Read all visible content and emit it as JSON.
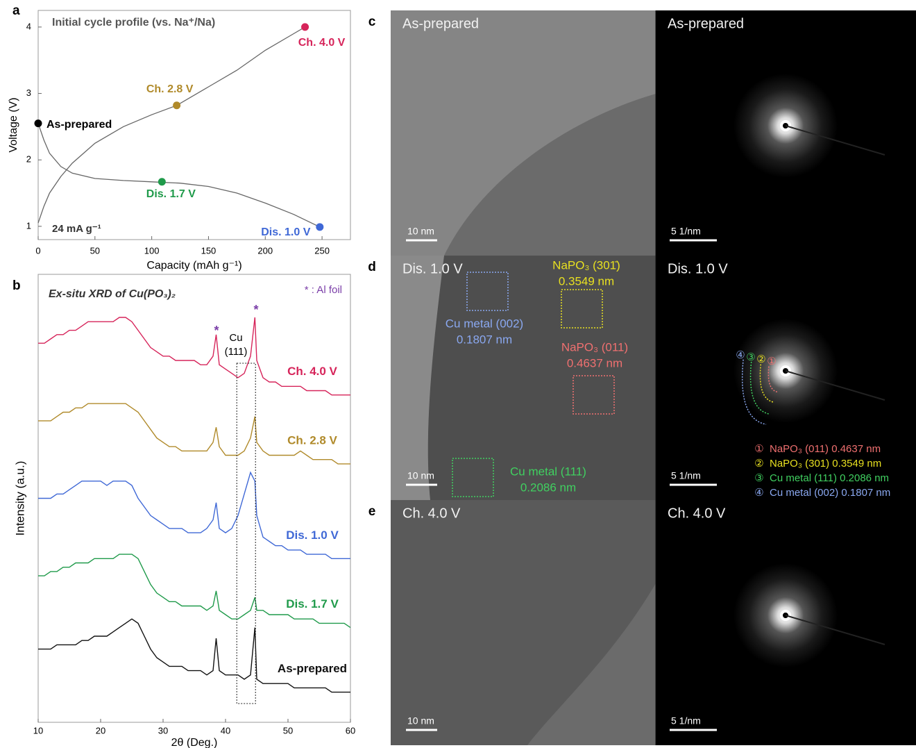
{
  "chart_data": [
    {
      "type": "line",
      "panel": "a",
      "title": "Initial cycle profile (vs. Na⁺/Na)",
      "xlabel": "Capacity (mAh g⁻¹)",
      "ylabel": "Voltage (V)",
      "annotation": "24 mA g⁻¹",
      "xlim": [
        0,
        275
      ],
      "ylim": [
        0.8,
        4.25
      ],
      "xticks": [
        0,
        50,
        100,
        150,
        200,
        250
      ],
      "yticks": [
        1,
        2,
        3,
        4
      ],
      "series": [
        {
          "color": "#666666",
          "x": [
            0,
            5,
            10,
            20,
            30,
            50,
            75,
            100,
            125,
            150,
            175,
            200,
            225,
            248
          ],
          "values": [
            2.55,
            2.3,
            2.1,
            1.9,
            1.8,
            1.72,
            1.69,
            1.67,
            1.65,
            1.6,
            1.5,
            1.35,
            1.18,
            0.99
          ]
        },
        {
          "color": "#666666",
          "x": [
            0,
            5,
            10,
            20,
            30,
            50,
            75,
            100,
            122,
            150,
            175,
            200,
            225,
            235
          ],
          "values": [
            1.05,
            1.3,
            1.5,
            1.75,
            1.95,
            2.25,
            2.5,
            2.68,
            2.82,
            3.1,
            3.35,
            3.65,
            3.9,
            4.0
          ]
        }
      ],
      "markers": [
        {
          "label": "As-prepared",
          "x": 0,
          "y": 2.55,
          "color": "#000000",
          "label_color": "#000000"
        },
        {
          "label": "Ch. 2.8 V",
          "x": 122,
          "y": 2.82,
          "color": "#b08a2a",
          "label_color": "#b08a2a"
        },
        {
          "label": "Dis. 1.7 V",
          "x": 109,
          "y": 1.67,
          "color": "#1f9a4a",
          "label_color": "#1f9a4a"
        },
        {
          "label": "Ch. 4.0 V",
          "x": 235,
          "y": 4.0,
          "color": "#d6245a",
          "label_color": "#d6245a"
        },
        {
          "label": "Dis. 1.0 V",
          "x": 248,
          "y": 0.99,
          "color": "#3f68d6",
          "label_color": "#3f68d6"
        }
      ]
    },
    {
      "type": "line",
      "panel": "b",
      "title": "Ex-situ XRD of Cu(PO₃)₂",
      "xlabel": "2θ (Deg.)",
      "ylabel": "Intensity (a.u.)",
      "peak_marker": "*",
      "al_foil": "* : Al foil",
      "cu_label": [
        "Cu",
        "(111)"
      ],
      "cu_window": [
        41.8,
        44.8
      ],
      "xlim": [
        10,
        60
      ],
      "ylim": [
        0,
        10.4
      ],
      "xticks": [
        10,
        20,
        30,
        40,
        50,
        60
      ],
      "x": [
        10,
        11,
        12,
        13,
        14,
        15,
        16,
        17,
        18,
        19,
        20,
        21,
        22,
        23,
        24,
        25,
        26,
        27,
        28,
        29,
        30,
        31,
        32,
        33,
        34,
        35,
        36,
        37,
        38,
        38.5,
        39,
        40,
        41,
        42,
        43,
        44,
        44.7,
        45,
        46,
        47,
        48,
        49,
        50,
        51,
        52,
        53,
        54,
        55,
        56,
        57,
        58,
        59,
        60
      ],
      "series": [
        {
          "name": "Ch. 4.0 V",
          "color": "#d6245a",
          "values": [
            8.8,
            8.8,
            8.9,
            9.0,
            9.0,
            9.1,
            9.1,
            9.2,
            9.3,
            9.3,
            9.3,
            9.3,
            9.3,
            9.4,
            9.4,
            9.3,
            9.1,
            8.9,
            8.7,
            8.6,
            8.5,
            8.5,
            8.4,
            8.4,
            8.4,
            8.4,
            8.3,
            8.3,
            8.5,
            9.0,
            8.3,
            8.2,
            8.1,
            8.0,
            8.1,
            8.5,
            9.4,
            8.4,
            8.0,
            7.9,
            7.9,
            7.8,
            7.8,
            7.8,
            7.8,
            7.7,
            7.7,
            7.7,
            7.7,
            7.6,
            7.6,
            7.6,
            7.6
          ]
        },
        {
          "name": "Ch. 2.8 V",
          "color": "#b08a2a",
          "values": [
            7.0,
            7.0,
            7.0,
            7.1,
            7.2,
            7.2,
            7.3,
            7.3,
            7.4,
            7.4,
            7.4,
            7.4,
            7.4,
            7.4,
            7.4,
            7.3,
            7.2,
            7.0,
            6.8,
            6.6,
            6.5,
            6.4,
            6.4,
            6.3,
            6.3,
            6.3,
            6.3,
            6.3,
            6.5,
            6.85,
            6.4,
            6.2,
            6.2,
            6.2,
            6.3,
            6.6,
            7.1,
            6.5,
            6.3,
            6.2,
            6.2,
            6.2,
            6.2,
            6.2,
            6.3,
            6.2,
            6.1,
            6.1,
            6.1,
            6.1,
            6.0,
            6.0,
            6.0
          ]
        },
        {
          "name": "Dis. 1.0 V",
          "color": "#3f68d6",
          "values": [
            5.2,
            5.2,
            5.2,
            5.3,
            5.3,
            5.4,
            5.5,
            5.6,
            5.6,
            5.6,
            5.6,
            5.5,
            5.6,
            5.6,
            5.6,
            5.5,
            5.2,
            5.0,
            4.8,
            4.7,
            4.6,
            4.5,
            4.5,
            4.5,
            4.4,
            4.4,
            4.4,
            4.5,
            4.7,
            5.1,
            4.5,
            4.4,
            4.5,
            4.8,
            5.3,
            5.8,
            5.6,
            4.8,
            4.3,
            4.2,
            4.1,
            4.1,
            4.0,
            4.0,
            4.0,
            3.9,
            3.9,
            3.9,
            3.9,
            3.8,
            3.8,
            3.8,
            3.8
          ]
        },
        {
          "name": "Dis. 1.7 V",
          "color": "#1f9a4a",
          "values": [
            3.4,
            3.4,
            3.5,
            3.5,
            3.6,
            3.6,
            3.7,
            3.7,
            3.7,
            3.8,
            3.8,
            3.8,
            3.8,
            3.9,
            3.9,
            3.9,
            3.8,
            3.5,
            3.2,
            3.0,
            2.9,
            2.8,
            2.8,
            2.7,
            2.7,
            2.7,
            2.7,
            2.6,
            2.7,
            3.05,
            2.6,
            2.5,
            2.4,
            2.4,
            2.5,
            2.6,
            2.9,
            2.6,
            2.6,
            2.5,
            2.5,
            2.5,
            2.5,
            2.4,
            2.4,
            2.4,
            2.4,
            2.3,
            2.3,
            2.3,
            2.3,
            2.3,
            2.2
          ]
        },
        {
          "name": "As-prepared",
          "color": "#111111",
          "values": [
            1.7,
            1.7,
            1.7,
            1.8,
            1.8,
            1.8,
            1.8,
            1.9,
            1.9,
            2.0,
            2.0,
            2.0,
            2.1,
            2.2,
            2.3,
            2.4,
            2.3,
            2.0,
            1.7,
            1.5,
            1.4,
            1.3,
            1.3,
            1.3,
            1.2,
            1.2,
            1.2,
            1.1,
            1.2,
            1.95,
            1.2,
            1.1,
            1.1,
            1.1,
            1.0,
            1.1,
            2.2,
            1.0,
            0.9,
            0.9,
            0.9,
            0.9,
            0.9,
            0.8,
            0.8,
            0.8,
            0.8,
            0.8,
            0.8,
            0.7,
            0.7,
            0.7,
            0.7
          ]
        }
      ]
    }
  ],
  "images": [
    {
      "panel": "c",
      "items": [
        {
          "label": "As-prepared",
          "scale": "10 nm"
        },
        {
          "label": "As-prepared",
          "scale": "5 1/nm"
        }
      ]
    },
    {
      "panel": "d",
      "items": [
        {
          "label": "Dis. 1.0 V",
          "scale": "10 nm"
        },
        {
          "label": "Dis. 1.0 V",
          "scale": "5 1/nm"
        }
      ],
      "annotations": [
        {
          "lines": [
            "NaPO₃ (301̄)",
            "0.3549 nm"
          ],
          "color": "#e8e020"
        },
        {
          "lines": [
            "Cu metal (002)",
            "0.1807 nm"
          ],
          "color": "#8aa8f0"
        },
        {
          "lines": [
            "NaPO₃ (011)",
            "0.4637 nm"
          ],
          "color": "#f07070"
        },
        {
          "lines": [
            "Cu metal (111)",
            "0.2086 nm"
          ],
          "color": "#40d060"
        }
      ],
      "rings": [
        {
          "num": "①",
          "text": "NaPO₃ (011) 0.4637 nm",
          "color": "#f07070"
        },
        {
          "num": "②",
          "text": "NaPO₃ (301) 0.3549 nm",
          "color": "#e8e020"
        },
        {
          "num": "③",
          "text": "Cu metal (111) 0.2086 nm",
          "color": "#40d060"
        },
        {
          "num": "④",
          "text": "Cu metal (002) 0.1807 nm",
          "color": "#8aa8f0"
        }
      ]
    },
    {
      "panel": "e",
      "items": [
        {
          "label": "Ch. 4.0 V",
          "scale": "10 nm"
        },
        {
          "label": "Ch. 4.0 V",
          "scale": "5 1/nm"
        }
      ]
    }
  ]
}
